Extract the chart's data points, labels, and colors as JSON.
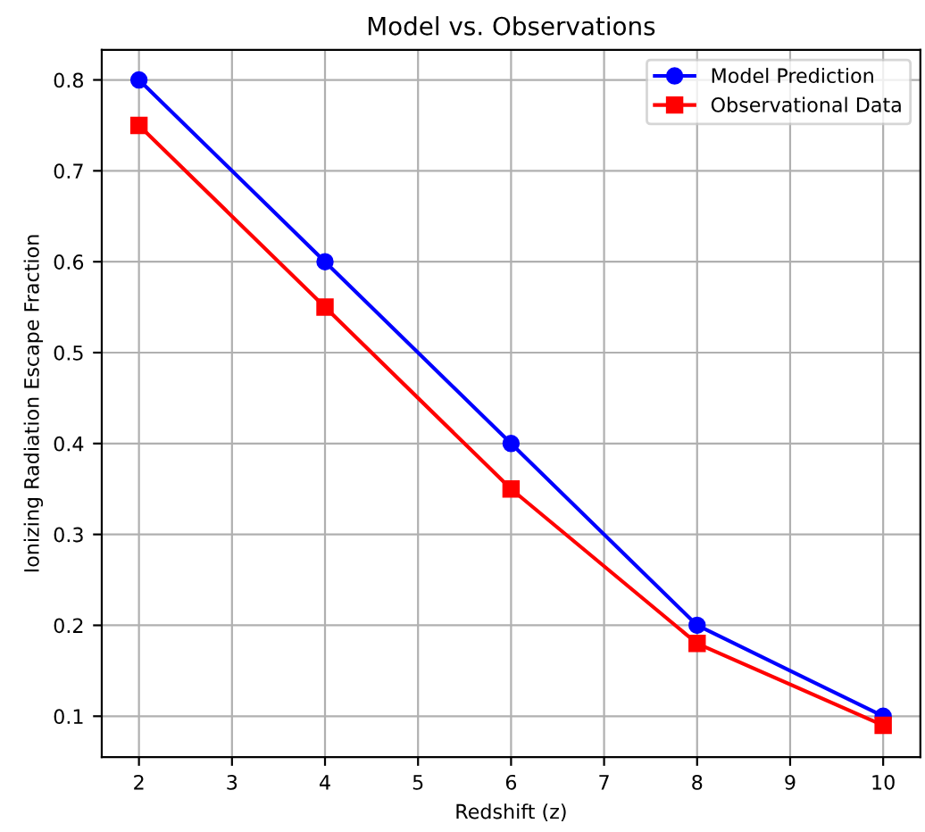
{
  "chart_data": {
    "type": "line",
    "title": "Model vs. Observations",
    "xlabel": "Redshift (z)",
    "ylabel": "Ionizing Radiation Escape Fraction",
    "x": [
      2,
      4,
      6,
      8,
      10
    ],
    "series": [
      {
        "name": "Model Prediction",
        "color": "#0000ff",
        "values": [
          0.8,
          0.6,
          0.4,
          0.2,
          0.1
        ],
        "marker": "circle"
      },
      {
        "name": "Observational Data",
        "color": "#ff0000",
        "values": [
          0.75,
          0.55,
          0.35,
          0.18,
          0.09
        ],
        "marker": "square"
      }
    ],
    "xlim": [
      1.6,
      10.4
    ],
    "ylim": [
      0.055,
      0.833
    ],
    "xticks": [
      2,
      3,
      4,
      5,
      6,
      7,
      8,
      9,
      10
    ],
    "yticks": [
      {
        "value": 0.1,
        "label": "0.1"
      },
      {
        "value": 0.2,
        "label": "0.2"
      },
      {
        "value": 0.3,
        "label": "0.3"
      },
      {
        "value": 0.4,
        "label": "0.4"
      },
      {
        "value": 0.5,
        "label": "0.5"
      },
      {
        "value": 0.6,
        "label": "0.6"
      },
      {
        "value": 0.7,
        "label": "0.7"
      },
      {
        "value": 0.8,
        "label": "0.8"
      }
    ],
    "grid": true,
    "legend": "top right",
    "line_style": "solid"
  }
}
